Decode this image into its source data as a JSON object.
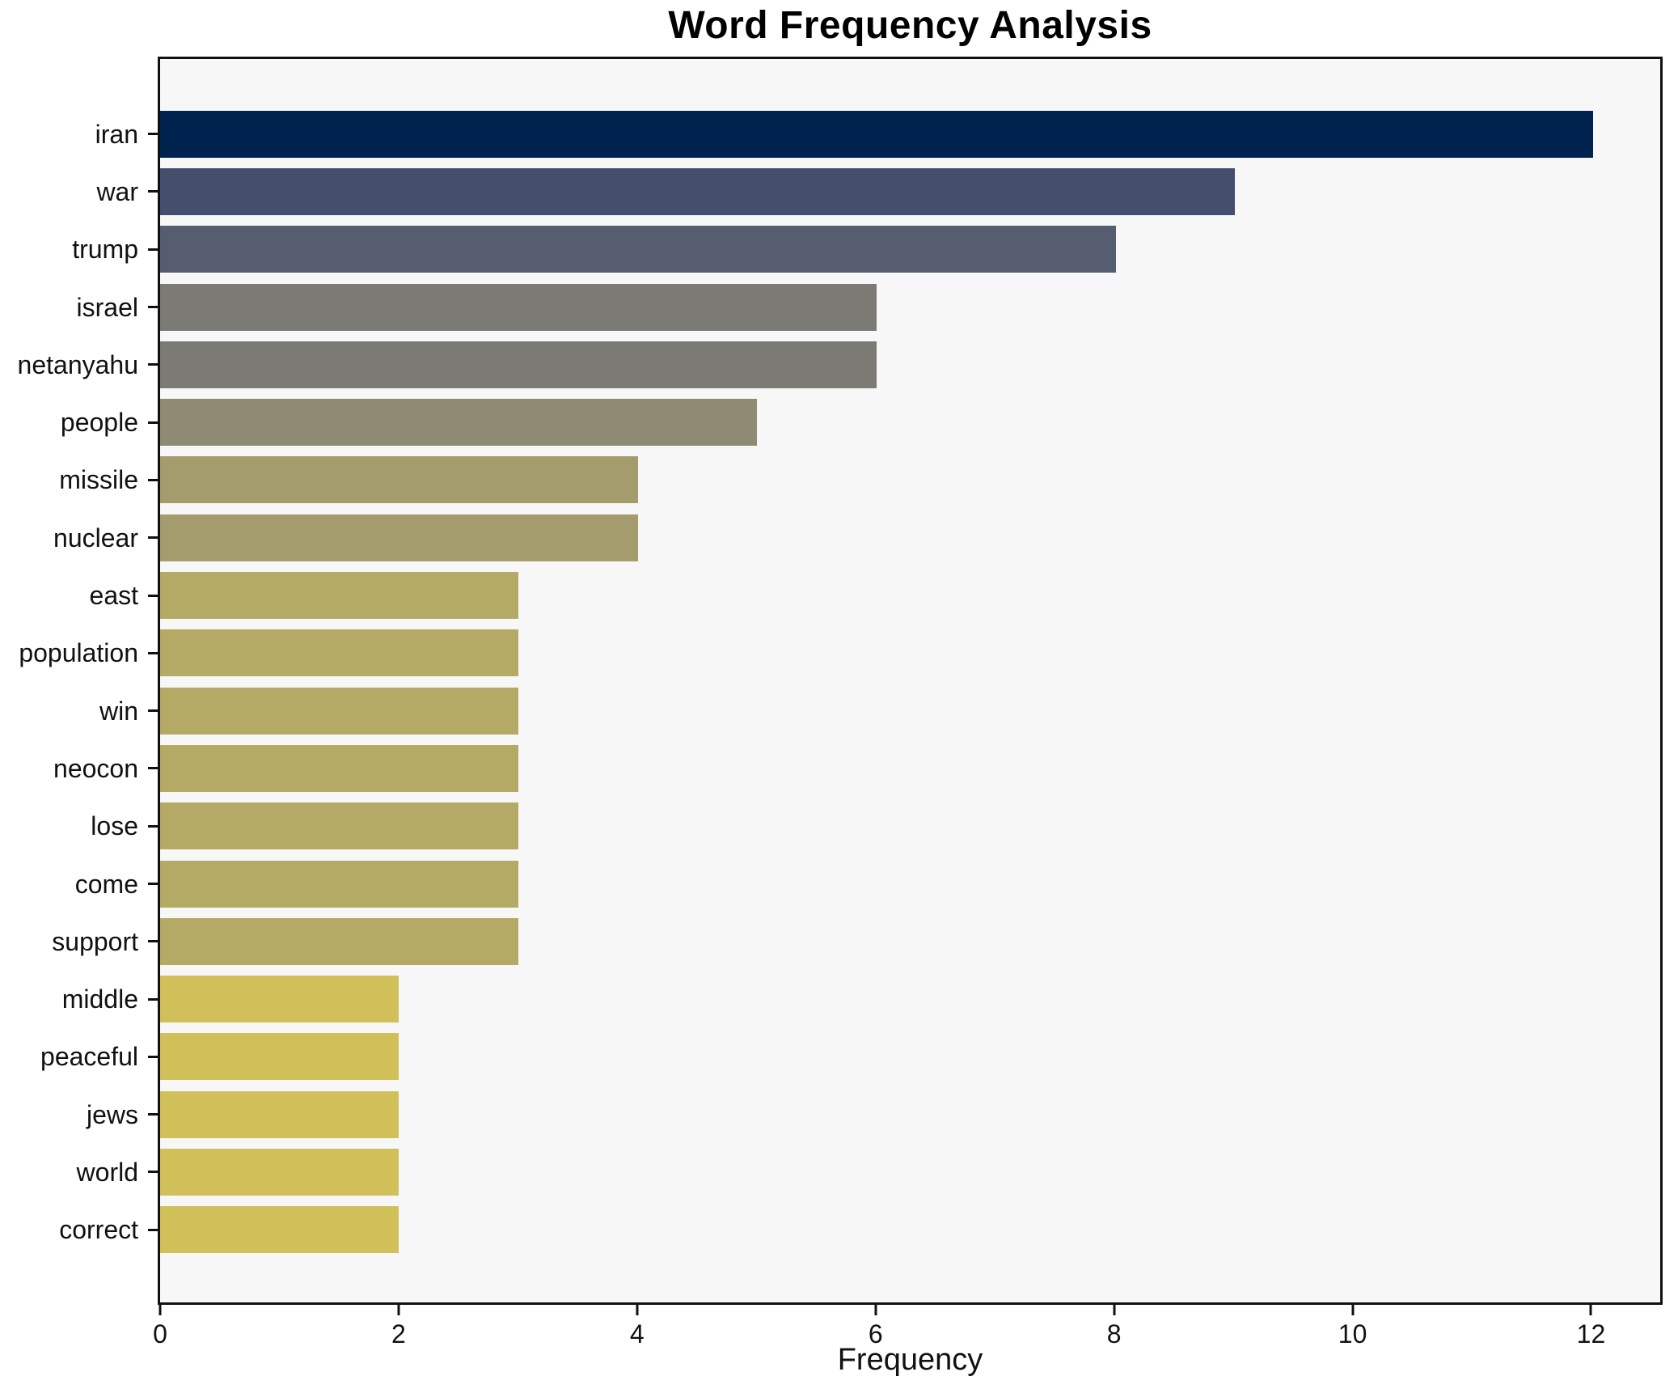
{
  "figure": {
    "background": "#ffffff",
    "plot_background": "#f7f7f8",
    "spine_color": "#111111",
    "text_color": "#111111"
  },
  "chart_data": {
    "type": "bar",
    "orientation": "horizontal",
    "title": "Word Frequency Analysis",
    "xlabel": "Frequency",
    "ylabel": "",
    "xlim": [
      0,
      12.58
    ],
    "x_ticks": [
      0,
      2,
      4,
      6,
      8,
      10,
      12
    ],
    "grid": false,
    "legend": false,
    "sort_order": "descending",
    "colormap": "cividis",
    "categories": [
      "iran",
      "war",
      "trump",
      "israel",
      "netanyahu",
      "people",
      "missile",
      "nuclear",
      "east",
      "population",
      "win",
      "neocon",
      "lose",
      "come",
      "support",
      "middle",
      "peaceful",
      "jews",
      "world",
      "correct"
    ],
    "values": [
      12,
      9,
      8,
      6,
      6,
      5,
      4,
      4,
      3,
      3,
      3,
      3,
      3,
      3,
      3,
      2,
      2,
      2,
      2,
      2
    ],
    "bar_colors": [
      "#00224e",
      "#444f6e",
      "#565d70",
      "#7b7a74",
      "#7b7a74",
      "#8f8a74",
      "#a49c6d",
      "#a49c6d",
      "#b5aa65",
      "#b5aa65",
      "#b5aa65",
      "#b5aa65",
      "#b5aa65",
      "#b5aa65",
      "#b5aa65",
      "#d1c05a",
      "#d1c05a",
      "#d1c05a",
      "#d1c05a",
      "#d1c05a"
    ]
  }
}
